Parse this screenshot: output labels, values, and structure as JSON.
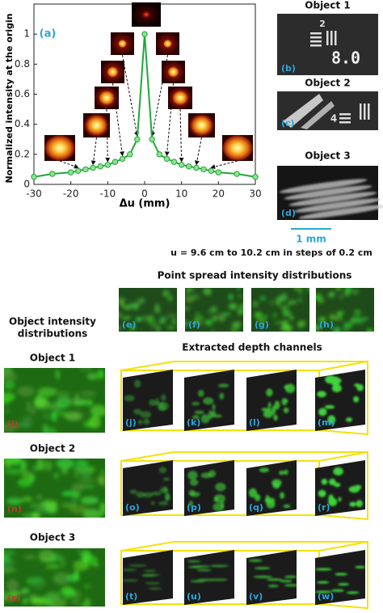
{
  "chart_data": {
    "type": "line",
    "label": "(a)",
    "x_label": "Δu (mm)",
    "y_label": "Normalized intensity at the origin",
    "x": [
      -30,
      -25,
      -20,
      -18,
      -16,
      -14,
      -12,
      -10,
      -8,
      -6,
      -4,
      -2,
      0,
      2,
      4,
      6,
      8,
      10,
      12,
      14,
      16,
      18,
      20,
      25,
      30
    ],
    "values": [
      0.05,
      0.07,
      0.08,
      0.09,
      0.1,
      0.11,
      0.12,
      0.13,
      0.15,
      0.17,
      0.2,
      0.3,
      1.0,
      0.3,
      0.2,
      0.17,
      0.15,
      0.13,
      0.12,
      0.11,
      0.1,
      0.09,
      0.08,
      0.07,
      0.05
    ],
    "color": "#1fa83a",
    "xlim": [
      -30,
      30
    ],
    "ylim": [
      0,
      1.2
    ],
    "xticks": [
      -30,
      -20,
      -10,
      0,
      10,
      20,
      30
    ],
    "yticks": [
      0,
      0.2,
      0.4,
      0.6,
      0.8,
      1
    ]
  },
  "objects": [
    {
      "title": "Object 1",
      "label": "(b)",
      "target_text": [
        "2",
        "8.0"
      ]
    },
    {
      "title": "Object 2",
      "label": "(c)",
      "target_text": [
        "4"
      ]
    },
    {
      "title": "Object 3",
      "label": "(d)"
    }
  ],
  "scale_bar": "1 mm",
  "caption": "u = 9.6 cm to 10.2 cm in steps of 0.2 cm",
  "psf_title": "Point spread intensity distributions",
  "psf_labels": [
    "(e)",
    "(f)",
    "(g)",
    "(h)"
  ],
  "object_intensity_title": [
    "Object intensity",
    "distributions"
  ],
  "depth_title": "Extracted depth channels",
  "rows": [
    {
      "title": "Object 1",
      "object_label": "(i)",
      "channel_labels": [
        "(j)",
        "(k)",
        "(l)",
        "(m)"
      ]
    },
    {
      "title": "Object 2",
      "object_label": "(n)",
      "channel_labels": [
        "(o)",
        "(p)",
        "(q)",
        "(r)"
      ]
    },
    {
      "title": "Object 3",
      "object_label": "(s)",
      "channel_labels": [
        "(t)",
        "(u)",
        "(v)",
        "(w)"
      ]
    }
  ]
}
